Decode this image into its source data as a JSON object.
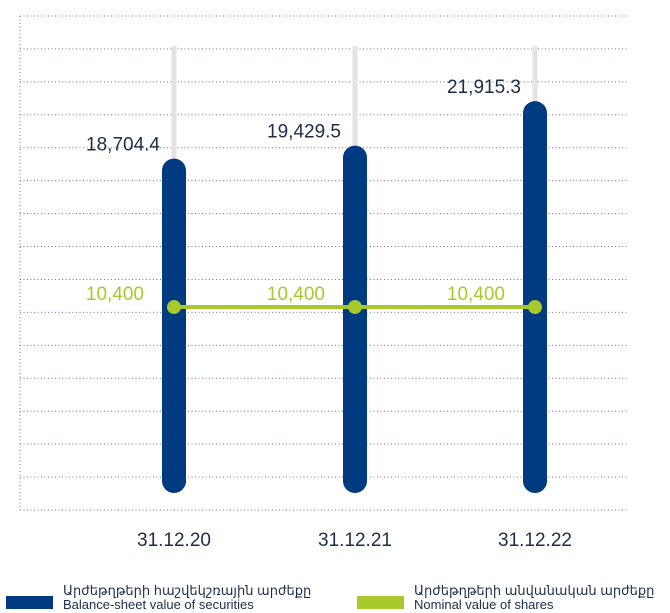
{
  "colors": {
    "bar": "#003a80",
    "line": "#a8c92c",
    "whisker": "#e3e3e3",
    "grid": "#6c7a9c",
    "text": "#1c2e4a"
  },
  "chart_data": {
    "type": "bar",
    "categories": [
      "31.12.20",
      "31.12.21",
      "31.12.22"
    ],
    "series": [
      {
        "name": "Արժեթղթերի հաշվեկշռային արժեքը / Balance-sheet value of securities",
        "type": "bar",
        "values": [
          18704.4,
          19429.5,
          21915.3
        ],
        "labels": [
          "18,704.4",
          "19,429.5",
          "21,915.3"
        ]
      },
      {
        "name": "Արժեթղթերի անվանական արժեքը / Nominal value of shares",
        "type": "line",
        "values": [
          10400,
          10400,
          10400
        ],
        "labels": [
          "10,400",
          "10,400",
          "10,400"
        ]
      }
    ],
    "ylim": [
      0,
      25000
    ],
    "grid": true,
    "legend_position": "bottom"
  },
  "legend": [
    {
      "line1": "Արժեթղթերի հաշվեկշռային արժեքը",
      "line2": "Balance-sheet value of securities"
    },
    {
      "line1": "Արժեթղթերի անվանական արժեքը",
      "line2": "Nominal value of shares"
    }
  ]
}
